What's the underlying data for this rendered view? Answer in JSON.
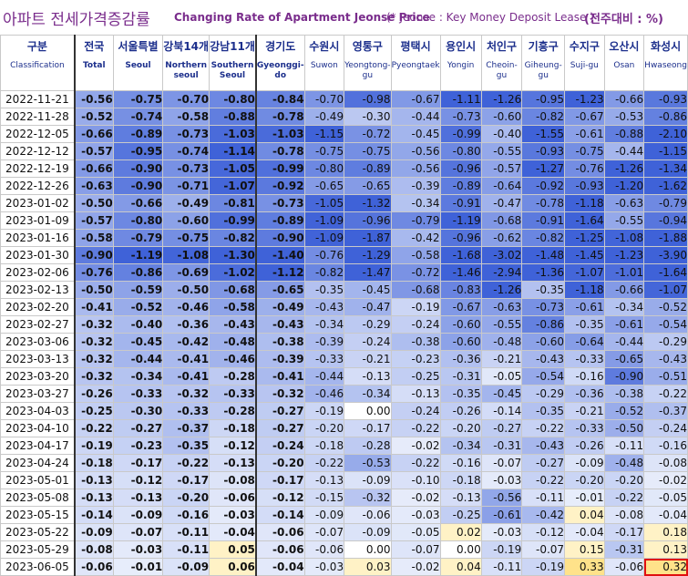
{
  "title": {
    "korean": "아파트 전세가격증감률",
    "english": "Changing Rate of Apartment Jeonse Price",
    "note": "(* Jeonse : Key Money Deposit Lease )",
    "unit": "(전주대비 : %)"
  },
  "columns": [
    {
      "ko": "구분",
      "en": "Classification"
    },
    {
      "ko": "전국",
      "en": "Total"
    },
    {
      "ko": "서울특별",
      "en": "Seoul"
    },
    {
      "ko": "강북14개",
      "en": "Northern seoul"
    },
    {
      "ko": "강남11개",
      "en": "Southern Seoul"
    },
    {
      "ko": "경기도",
      "en": "Gyeonggi-do"
    },
    {
      "ko": "수원시",
      "en": "Suwon"
    },
    {
      "ko": "영통구",
      "en": "Yeongtong-gu"
    },
    {
      "ko": "평택시",
      "en": "Pyeongtaek"
    },
    {
      "ko": "용인시",
      "en": "Yongin"
    },
    {
      "ko": "처인구",
      "en": "Cheoin-gu"
    },
    {
      "ko": "기흥구",
      "en": "Giheung-gu"
    },
    {
      "ko": "수지구",
      "en": "Suji-gu"
    },
    {
      "ko": "오산시",
      "en": "Osan"
    },
    {
      "ko": "화성시",
      "en": "Hwaseong"
    }
  ],
  "rows": [
    {
      "date": "2022-11-21",
      "values": [
        "-0.56",
        "-0.75",
        "-0.70",
        "-0.80",
        "-0.84",
        "-0.70",
        "-0.98",
        "-0.67",
        "-1.11",
        "-1.26",
        "-0.95",
        "-1.23",
        "-0.66",
        "-0.93"
      ]
    },
    {
      "date": "2022-11-28",
      "values": [
        "-0.52",
        "-0.74",
        "-0.58",
        "-0.88",
        "-0.78",
        "-0.49",
        "-0.30",
        "-0.44",
        "-0.73",
        "-0.60",
        "-0.82",
        "-0.67",
        "-0.53",
        "-0.86"
      ]
    },
    {
      "date": "2022-12-05",
      "values": [
        "-0.66",
        "-0.89",
        "-0.73",
        "-1.03",
        "-1.03",
        "-1.15",
        "-0.72",
        "-0.45",
        "-0.99",
        "-0.40",
        "-1.55",
        "-0.61",
        "-0.88",
        "-2.10"
      ]
    },
    {
      "date": "2022-12-12",
      "values": [
        "-0.57",
        "-0.95",
        "-0.74",
        "-1.14",
        "-0.78",
        "-0.75",
        "-0.75",
        "-0.56",
        "-0.80",
        "-0.55",
        "-0.93",
        "-0.75",
        "-0.44",
        "-1.15"
      ]
    },
    {
      "date": "2022-12-19",
      "values": [
        "-0.66",
        "-0.90",
        "-0.73",
        "-1.05",
        "-0.99",
        "-0.80",
        "-0.89",
        "-0.56",
        "-0.96",
        "-0.57",
        "-1.27",
        "-0.76",
        "-1.26",
        "-1.34"
      ]
    },
    {
      "date": "2022-12-26",
      "values": [
        "-0.63",
        "-0.90",
        "-0.71",
        "-1.07",
        "-0.92",
        "-0.65",
        "-0.65",
        "-0.39",
        "-0.89",
        "-0.64",
        "-0.92",
        "-0.93",
        "-1.20",
        "-1.62"
      ]
    },
    {
      "date": "2023-01-02",
      "values": [
        "-0.50",
        "-0.66",
        "-0.49",
        "-0.81",
        "-0.73",
        "-1.05",
        "-1.32",
        "-0.34",
        "-0.91",
        "-0.47",
        "-0.78",
        "-1.18",
        "-0.63",
        "-0.79"
      ]
    },
    {
      "date": "2023-01-09",
      "values": [
        "-0.57",
        "-0.80",
        "-0.60",
        "-0.99",
        "-0.89",
        "-1.09",
        "-0.96",
        "-0.79",
        "-1.19",
        "-0.68",
        "-0.91",
        "-1.64",
        "-0.55",
        "-0.94"
      ]
    },
    {
      "date": "2023-01-16",
      "values": [
        "-0.58",
        "-0.79",
        "-0.75",
        "-0.82",
        "-0.90",
        "-1.09",
        "-1.87",
        "-0.42",
        "-0.96",
        "-0.62",
        "-0.82",
        "-1.25",
        "-1.08",
        "-1.88"
      ]
    },
    {
      "date": "2023-01-30",
      "values": [
        "-0.90",
        "-1.19",
        "-1.08",
        "-1.30",
        "-1.40",
        "-0.76",
        "-1.29",
        "-0.58",
        "-1.68",
        "-3.02",
        "-1.48",
        "-1.45",
        "-1.23",
        "-3.90"
      ]
    },
    {
      "date": "2023-02-06",
      "values": [
        "-0.76",
        "-0.86",
        "-0.69",
        "-1.02",
        "-1.12",
        "-0.82",
        "-1.47",
        "-0.72",
        "-1.46",
        "-2.94",
        "-1.36",
        "-1.07",
        "-1.01",
        "-1.64"
      ]
    },
    {
      "date": "2023-02-13",
      "values": [
        "-0.50",
        "-0.59",
        "-0.50",
        "-0.68",
        "-0.65",
        "-0.35",
        "-0.45",
        "-0.68",
        "-0.83",
        "-1.26",
        "-0.35",
        "-1.18",
        "-0.66",
        "-1.07"
      ]
    },
    {
      "date": "2023-02-20",
      "values": [
        "-0.41",
        "-0.52",
        "-0.46",
        "-0.58",
        "-0.49",
        "-0.43",
        "-0.47",
        "-0.19",
        "-0.67",
        "-0.63",
        "-0.73",
        "-0.61",
        "-0.34",
        "-0.52"
      ]
    },
    {
      "date": "2023-02-27",
      "values": [
        "-0.32",
        "-0.40",
        "-0.36",
        "-0.43",
        "-0.43",
        "-0.34",
        "-0.29",
        "-0.24",
        "-0.60",
        "-0.55",
        "-0.86",
        "-0.35",
        "-0.61",
        "-0.54"
      ]
    },
    {
      "date": "2023-03-06",
      "values": [
        "-0.32",
        "-0.45",
        "-0.42",
        "-0.48",
        "-0.38",
        "-0.39",
        "-0.24",
        "-0.38",
        "-0.60",
        "-0.48",
        "-0.60",
        "-0.64",
        "-0.44",
        "-0.29"
      ]
    },
    {
      "date": "2023-03-13",
      "values": [
        "-0.32",
        "-0.44",
        "-0.41",
        "-0.46",
        "-0.39",
        "-0.33",
        "-0.21",
        "-0.23",
        "-0.36",
        "-0.21",
        "-0.43",
        "-0.33",
        "-0.65",
        "-0.43"
      ]
    },
    {
      "date": "2023-03-20",
      "values": [
        "-0.32",
        "-0.34",
        "-0.41",
        "-0.28",
        "-0.41",
        "-0.44",
        "-0.13",
        "-0.25",
        "-0.31",
        "-0.05",
        "-0.54",
        "-0.16",
        "-0.90",
        "-0.51"
      ]
    },
    {
      "date": "2023-03-27",
      "values": [
        "-0.26",
        "-0.33",
        "-0.32",
        "-0.33",
        "-0.32",
        "-0.46",
        "-0.34",
        "-0.13",
        "-0.35",
        "-0.45",
        "-0.29",
        "-0.36",
        "-0.38",
        "-0.22"
      ]
    },
    {
      "date": "2023-04-03",
      "values": [
        "-0.25",
        "-0.30",
        "-0.33",
        "-0.28",
        "-0.27",
        "-0.19",
        "0.00",
        "-0.24",
        "-0.26",
        "-0.14",
        "-0.35",
        "-0.21",
        "-0.52",
        "-0.37"
      ]
    },
    {
      "date": "2023-04-10",
      "values": [
        "-0.22",
        "-0.27",
        "-0.37",
        "-0.18",
        "-0.27",
        "-0.20",
        "-0.17",
        "-0.22",
        "-0.20",
        "-0.27",
        "-0.22",
        "-0.33",
        "-0.50",
        "-0.24"
      ]
    },
    {
      "date": "2023-04-17",
      "values": [
        "-0.19",
        "-0.23",
        "-0.35",
        "-0.12",
        "-0.24",
        "-0.18",
        "-0.28",
        "-0.02",
        "-0.34",
        "-0.31",
        "-0.43",
        "-0.26",
        "-0.11",
        "-0.16"
      ]
    },
    {
      "date": "2023-04-24",
      "values": [
        "-0.18",
        "-0.17",
        "-0.22",
        "-0.13",
        "-0.20",
        "-0.22",
        "-0.53",
        "-0.22",
        "-0.16",
        "-0.07",
        "-0.27",
        "-0.09",
        "-0.48",
        "-0.08"
      ]
    },
    {
      "date": "2023-05-01",
      "values": [
        "-0.13",
        "-0.12",
        "-0.17",
        "-0.08",
        "-0.17",
        "-0.13",
        "-0.09",
        "-0.10",
        "-0.18",
        "-0.03",
        "-0.22",
        "-0.20",
        "-0.20",
        "-0.02"
      ]
    },
    {
      "date": "2023-05-08",
      "values": [
        "-0.13",
        "-0.13",
        "-0.20",
        "-0.06",
        "-0.12",
        "-0.15",
        "-0.32",
        "-0.02",
        "-0.13",
        "-0.56",
        "-0.11",
        "-0.01",
        "-0.22",
        "-0.05"
      ]
    },
    {
      "date": "2023-05-15",
      "values": [
        "-0.14",
        "-0.09",
        "-0.16",
        "-0.03",
        "-0.14",
        "-0.09",
        "-0.06",
        "-0.03",
        "-0.25",
        "-0.61",
        "-0.42",
        "0.04",
        "-0.08",
        "-0.04"
      ]
    },
    {
      "date": "2023-05-22",
      "values": [
        "-0.09",
        "-0.07",
        "-0.11",
        "-0.04",
        "-0.06",
        "-0.07",
        "-0.09",
        "-0.05",
        "0.02",
        "-0.03",
        "-0.12",
        "-0.04",
        "-0.17",
        "0.18"
      ]
    },
    {
      "date": "2023-05-29",
      "values": [
        "-0.08",
        "-0.03",
        "-0.11",
        "0.05",
        "-0.06",
        "-0.06",
        "0.00",
        "-0.07",
        "0.00",
        "-0.19",
        "-0.07",
        "0.15",
        "-0.31",
        "0.13"
      ]
    },
    {
      "date": "2023-06-05",
      "values": [
        "-0.06",
        "-0.01",
        "-0.09",
        "0.06",
        "-0.04",
        "-0.03",
        "0.03",
        "-0.02",
        "0.04",
        "-0.11",
        "-0.19",
        "0.33",
        "-0.06",
        "0.32"
      ]
    }
  ],
  "highlight": {
    "date": "2023-06-05",
    "column": "화성시",
    "color": "#e01010"
  },
  "colors": {
    "title": "#7a2d8c",
    "header": "#1c2f8c",
    "positive": "#ffe7a0",
    "negative_strong": "#3f62d8"
  }
}
